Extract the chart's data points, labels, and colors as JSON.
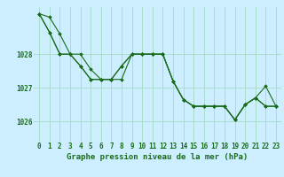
{
  "background_color": "#cceeff",
  "grid_color": "#aaddcc",
  "line_color": "#1a6b1a",
  "marker_color": "#1a6b1a",
  "xlabel": "Graphe pression niveau de la mer (hPa)",
  "xlabel_fontsize": 6.5,
  "tick_label_fontsize": 5.5,
  "ylim": [
    1025.4,
    1029.4
  ],
  "xlim": [
    -0.5,
    23.5
  ],
  "yticks": [
    1026,
    1027,
    1028
  ],
  "xticks": [
    0,
    1,
    2,
    3,
    4,
    5,
    6,
    7,
    8,
    9,
    10,
    11,
    12,
    13,
    14,
    15,
    16,
    17,
    18,
    19,
    20,
    21,
    22,
    23
  ],
  "series": [
    [
      1029.2,
      1029.1,
      1028.6,
      1028.0,
      1028.0,
      1027.55,
      1027.25,
      1027.25,
      1027.65,
      1028.0,
      1028.0,
      1028.0,
      1028.0,
      1027.2,
      1026.65,
      1026.45,
      1026.45,
      1026.45,
      1026.45,
      1026.05,
      1026.5,
      1026.7,
      1026.45,
      1026.45
    ],
    [
      1029.2,
      1028.65,
      1028.0,
      1028.0,
      1027.65,
      1027.25,
      1027.25,
      1027.25,
      1027.25,
      1028.0,
      1028.0,
      1028.0,
      1028.0,
      1027.2,
      1026.65,
      1026.45,
      1026.45,
      1026.45,
      1026.45,
      1026.05,
      1026.5,
      1026.7,
      1027.05,
      1026.45
    ],
    [
      1029.2,
      1028.65,
      1028.0,
      1028.0,
      1027.65,
      1027.25,
      1027.25,
      1027.25,
      1027.65,
      1028.0,
      1028.0,
      1028.0,
      1028.0,
      1027.2,
      1026.65,
      1026.45,
      1026.45,
      1026.45,
      1026.45,
      1026.05,
      1026.5,
      1026.7,
      1026.45,
      1026.45
    ]
  ]
}
